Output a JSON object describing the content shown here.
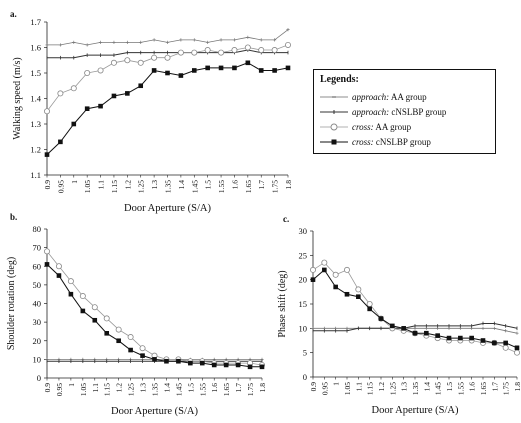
{
  "chart_data": [
    {
      "panel_label": "a.",
      "type": "line",
      "xlabel": "Door Aperture (S/A)",
      "ylabel": "Walking speed (m/s)",
      "ylim": [
        1.1,
        1.7
      ],
      "yticks": [
        "1.1",
        "1.2",
        "1.3",
        "1.4",
        "1.5",
        "1.6",
        "1.7"
      ],
      "x": [
        "0.9",
        "0.95",
        "1",
        "1.05",
        "1.1",
        "1.15",
        "1.2",
        "1.25",
        "1.3",
        "1.35",
        "1.4",
        "1.45",
        "1.5",
        "1.55",
        "1.6",
        "1.65",
        "1.7",
        "1.75",
        "1.8"
      ],
      "series": [
        {
          "name": "approach: AA group",
          "values": [
            1.61,
            1.61,
            1.62,
            1.61,
            1.62,
            1.62,
            1.62,
            1.62,
            1.63,
            1.62,
            1.63,
            1.63,
            1.62,
            1.63,
            1.63,
            1.64,
            1.63,
            1.63,
            1.67
          ]
        },
        {
          "name": "approach: cNSLBP group",
          "values": [
            1.56,
            1.56,
            1.56,
            1.57,
            1.57,
            1.57,
            1.58,
            1.58,
            1.58,
            1.58,
            1.58,
            1.58,
            1.58,
            1.58,
            1.58,
            1.59,
            1.58,
            1.58,
            1.58
          ]
        },
        {
          "name": "cross: AA group",
          "values": [
            1.35,
            1.42,
            1.44,
            1.5,
            1.51,
            1.54,
            1.55,
            1.54,
            1.56,
            1.56,
            1.58,
            1.58,
            1.59,
            1.58,
            1.59,
            1.6,
            1.59,
            1.59,
            1.61
          ]
        },
        {
          "name": "cross: cNSLBP group",
          "values": [
            1.18,
            1.23,
            1.3,
            1.36,
            1.37,
            1.41,
            1.42,
            1.45,
            1.51,
            1.5,
            1.49,
            1.51,
            1.52,
            1.52,
            1.52,
            1.54,
            1.51,
            1.51,
            1.52
          ]
        }
      ]
    },
    {
      "panel_label": "b.",
      "type": "line",
      "xlabel": "Door Aperture (S/A)",
      "ylabel": "Shoulder rotation (deg)",
      "ylim": [
        0,
        80
      ],
      "yticks": [
        "0",
        "10",
        "20",
        "30",
        "40",
        "50",
        "60",
        "70",
        "80"
      ],
      "x": [
        "0.9",
        "0.95",
        "1",
        "1.05",
        "1.1",
        "1.15",
        "1.2",
        "1.25",
        "1.3",
        "1.35",
        "1.4",
        "1.45",
        "1.5",
        "1.55",
        "1.6",
        "1.65",
        "1.7",
        "1.75",
        "1.8"
      ],
      "series": [
        {
          "name": "approach: AA group",
          "values": [
            10,
            10,
            10,
            10,
            10,
            10,
            10,
            10,
            10,
            10,
            10,
            10,
            10,
            10,
            10,
            10,
            10,
            10,
            10
          ]
        },
        {
          "name": "approach: cNSLBP group",
          "values": [
            9,
            9,
            9,
            9,
            9,
            9,
            9,
            9,
            9,
            9,
            9,
            9,
            9,
            9,
            9,
            9,
            9,
            9,
            9
          ]
        },
        {
          "name": "cross: AA group",
          "values": [
            68,
            60,
            52,
            44,
            38,
            32,
            26,
            22,
            16,
            12,
            10,
            10,
            9,
            9,
            8,
            8,
            8,
            8,
            7
          ]
        },
        {
          "name": "cross: cNSLBP group",
          "values": [
            61,
            55,
            45,
            36,
            31,
            24,
            20,
            15,
            12,
            10,
            9,
            9,
            8,
            8,
            7,
            7,
            7,
            6,
            6
          ]
        }
      ]
    },
    {
      "panel_label": "c.",
      "type": "line",
      "xlabel": "Door Aperture (S/A)",
      "ylabel": "Phase shift (deg)",
      "ylim": [
        0,
        30
      ],
      "yticks": [
        "0",
        "5",
        "10",
        "15",
        "20",
        "25",
        "30"
      ],
      "x": [
        "0.9",
        "0.95",
        "1",
        "1.05",
        "1.1",
        "1.15",
        "1.2",
        "1.25",
        "1.3",
        "1.35",
        "1.4",
        "1.45",
        "1.5",
        "1.55",
        "1.6",
        "1.65",
        "1.7",
        "1.75",
        "1.8"
      ],
      "series": [
        {
          "name": "approach: AA group",
          "values": [
            10,
            10,
            10,
            10,
            10,
            10,
            10,
            10,
            10,
            10,
            10,
            10,
            10,
            10,
            10,
            10,
            10,
            9.5,
            9
          ]
        },
        {
          "name": "approach: cNSLBP group",
          "values": [
            9.5,
            9.5,
            9.5,
            9.5,
            10,
            10,
            10,
            10,
            10,
            10.5,
            10.5,
            10.5,
            10.5,
            10.5,
            10.5,
            11,
            11,
            10.5,
            10
          ]
        },
        {
          "name": "cross: AA group",
          "values": [
            22,
            23.5,
            21,
            22,
            18,
            15,
            12,
            10,
            9.5,
            9,
            8.5,
            8,
            7.5,
            7.5,
            7.5,
            7,
            7,
            6,
            5
          ]
        },
        {
          "name": "cross: cNSLBP group",
          "values": [
            20,
            22,
            18.5,
            17,
            16.5,
            14,
            12,
            10.5,
            10,
            9,
            9,
            8.5,
            8,
            8,
            8,
            7.5,
            7,
            7,
            6
          ]
        }
      ]
    }
  ],
  "legend": {
    "title": "Legends:",
    "items": [
      {
        "prefix": "approach:",
        "rest": " AA group"
      },
      {
        "prefix": "approach:",
        "rest": " cNSLBP group"
      },
      {
        "prefix": "cross:",
        "rest": " AA group"
      },
      {
        "prefix": "cross:",
        "rest": " cNSLBP group"
      }
    ]
  }
}
